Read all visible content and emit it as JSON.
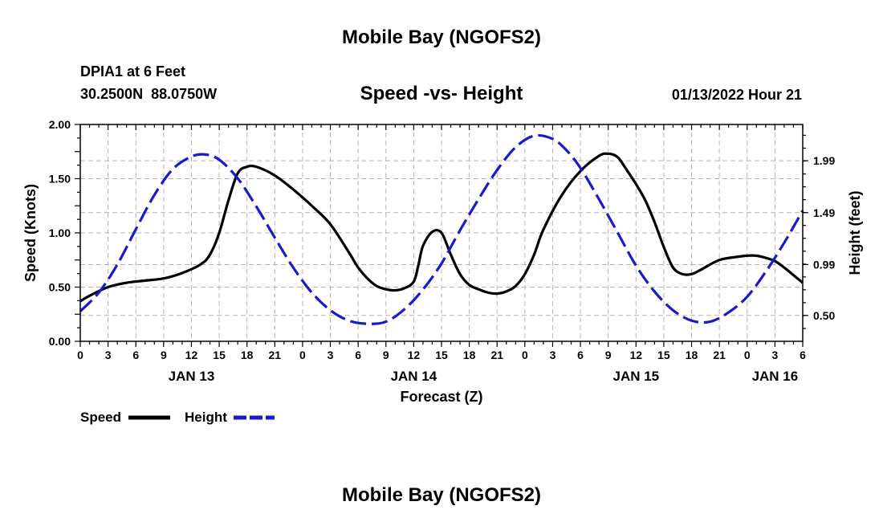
{
  "page": {
    "title_top": "Mobile Bay (NGOFS2)",
    "title_bottom": "Mobile Bay (NGOFS2)",
    "station": "DPIA1 at 6 Feet",
    "coords": "30.2500N  88.0750W",
    "chart_title": "Speed -vs- Height",
    "datetime": "01/13/2022 Hour 21"
  },
  "legend": {
    "speed_label": "Speed",
    "height_label": "Height"
  },
  "colors": {
    "speed": "#000000",
    "height": "#1a1acc",
    "grid": "#b4b4b4"
  },
  "chart_data": {
    "type": "line",
    "title": "Speed -vs- Height",
    "xlabel": "Forecast (Z)",
    "ylabel_left": "Speed (Knots)",
    "ylabel_right": "Height (feet)",
    "x_unit": "hours since JAN 13 00Z",
    "xlim": [
      0,
      78
    ],
    "ylim_left": [
      0,
      2.0
    ],
    "ylim_right": [
      0.251,
      2.339
    ],
    "x_ticks": [
      {
        "x": 0,
        "label": "0"
      },
      {
        "x": 3,
        "label": "3"
      },
      {
        "x": 6,
        "label": "6"
      },
      {
        "x": 9,
        "label": "9"
      },
      {
        "x": 12,
        "label": "12"
      },
      {
        "x": 15,
        "label": "15"
      },
      {
        "x": 18,
        "label": "18"
      },
      {
        "x": 21,
        "label": "21"
      },
      {
        "x": 24,
        "label": "0"
      },
      {
        "x": 27,
        "label": "3"
      },
      {
        "x": 30,
        "label": "6"
      },
      {
        "x": 33,
        "label": "9"
      },
      {
        "x": 36,
        "label": "12"
      },
      {
        "x": 39,
        "label": "15"
      },
      {
        "x": 42,
        "label": "18"
      },
      {
        "x": 45,
        "label": "21"
      },
      {
        "x": 48,
        "label": "0"
      },
      {
        "x": 51,
        "label": "3"
      },
      {
        "x": 54,
        "label": "6"
      },
      {
        "x": 57,
        "label": "9"
      },
      {
        "x": 60,
        "label": "12"
      },
      {
        "x": 63,
        "label": "15"
      },
      {
        "x": 66,
        "label": "18"
      },
      {
        "x": 69,
        "label": "21"
      },
      {
        "x": 72,
        "label": "0"
      },
      {
        "x": 75,
        "label": "3"
      },
      {
        "x": 78,
        "label": "6"
      }
    ],
    "day_labels": [
      {
        "x": 12,
        "label": "JAN 13"
      },
      {
        "x": 36,
        "label": "JAN 14"
      },
      {
        "x": 60,
        "label": "JAN 15"
      },
      {
        "x": 75,
        "label": "JAN 16"
      }
    ],
    "y_ticks_left": [
      "0.00",
      "0.50",
      "1.00",
      "1.50",
      "2.00"
    ],
    "y_ticks_left_values": [
      0,
      0.5,
      1.0,
      1.5,
      2.0
    ],
    "y_ticks_right": [
      "0.50",
      "0.99",
      "1.49",
      "1.99"
    ],
    "y_ticks_right_values": [
      0.5,
      0.99,
      1.49,
      1.99
    ],
    "series": [
      {
        "name": "Speed",
        "axis": "left",
        "style": "solid",
        "x": [
          0,
          1,
          3,
          5,
          7,
          9,
          11,
          13,
          14,
          15,
          16,
          17,
          18,
          19,
          21,
          23,
          25,
          27,
          29,
          30,
          31,
          32,
          33,
          34,
          35,
          36,
          36.5,
          37,
          38,
          39,
          40,
          41,
          42,
          43,
          44,
          45,
          46,
          47,
          48,
          49,
          50,
          52,
          54,
          56,
          57,
          58,
          59,
          60,
          61,
          62,
          63,
          64,
          65,
          66,
          67,
          69,
          71,
          72,
          73,
          74,
          75,
          76,
          77,
          78
        ],
        "values": [
          0.37,
          0.42,
          0.5,
          0.54,
          0.56,
          0.58,
          0.63,
          0.71,
          0.8,
          1.0,
          1.3,
          1.55,
          1.61,
          1.61,
          1.53,
          1.4,
          1.25,
          1.08,
          0.82,
          0.68,
          0.58,
          0.51,
          0.48,
          0.47,
          0.49,
          0.55,
          0.7,
          0.88,
          1.01,
          1.0,
          0.8,
          0.62,
          0.52,
          0.48,
          0.45,
          0.44,
          0.46,
          0.51,
          0.62,
          0.8,
          1.03,
          1.35,
          1.57,
          1.71,
          1.73,
          1.7,
          1.58,
          1.45,
          1.3,
          1.1,
          0.87,
          0.68,
          0.62,
          0.62,
          0.66,
          0.75,
          0.78,
          0.79,
          0.79,
          0.77,
          0.74,
          0.68,
          0.61,
          0.54
        ]
      },
      {
        "name": "Height",
        "axis": "right",
        "style": "dashed",
        "x": [
          0,
          2,
          4,
          6,
          8,
          10,
          12,
          13.5,
          15,
          17,
          19,
          21,
          23,
          25,
          27,
          29,
          31,
          33,
          35,
          37,
          39,
          41,
          43,
          45,
          47,
          49,
          51,
          52.5,
          54,
          56,
          58,
          60,
          62,
          64,
          66,
          68,
          70,
          72,
          74,
          76,
          78
        ],
        "values": [
          0.54,
          0.72,
          0.99,
          1.33,
          1.66,
          1.91,
          2.03,
          2.05,
          2.0,
          1.82,
          1.55,
          1.25,
          0.96,
          0.72,
          0.55,
          0.45,
          0.42,
          0.44,
          0.56,
          0.75,
          1.0,
          1.32,
          1.62,
          1.9,
          2.12,
          2.23,
          2.2,
          2.09,
          1.92,
          1.62,
          1.3,
          0.98,
          0.73,
          0.55,
          0.45,
          0.44,
          0.53,
          0.68,
          0.92,
          1.2,
          1.51
        ]
      }
    ]
  }
}
